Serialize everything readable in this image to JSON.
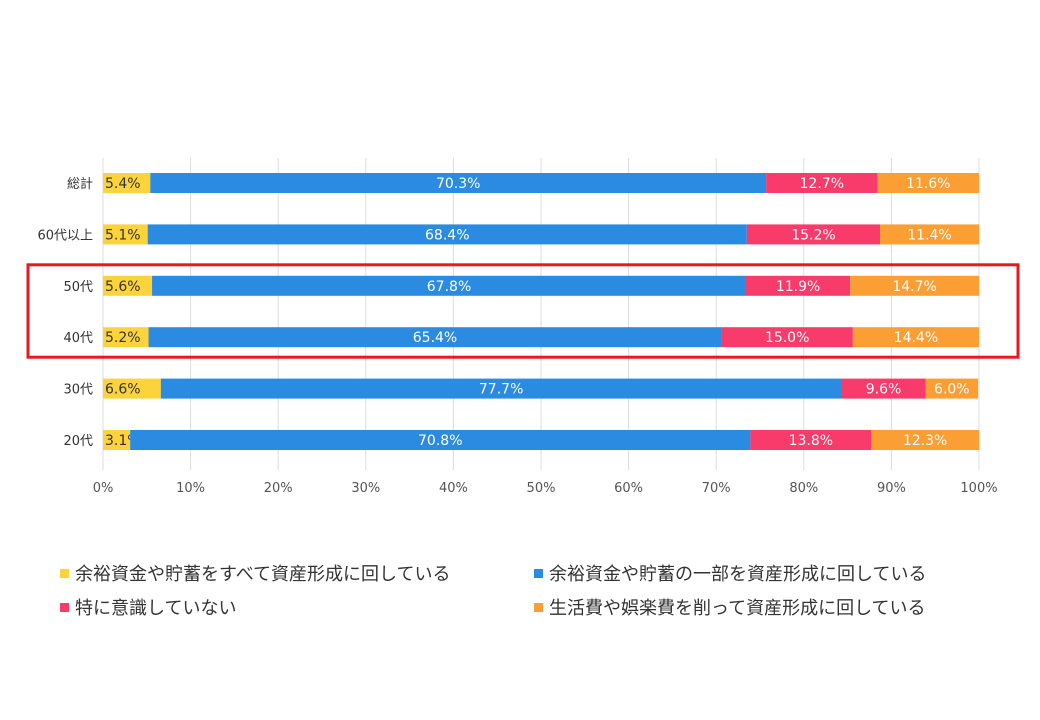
{
  "chart_data": {
    "type": "bar",
    "orientation": "horizontal",
    "stacked": true,
    "categories": [
      "総計",
      "60代以上",
      "50代",
      "40代",
      "30代",
      "20代"
    ],
    "series": [
      {
        "name": "余裕資金や貯蓄をすべて資産形成に回している",
        "color": "#FDD33C",
        "values": [
          5.4,
          5.1,
          5.6,
          5.2,
          6.6,
          3.1
        ]
      },
      {
        "name": "余裕資金や貯蓄の一部を資産形成に回している",
        "color": "#2B8BE0",
        "values": [
          70.3,
          68.4,
          67.8,
          65.4,
          77.7,
          70.8
        ]
      },
      {
        "name": "特に意識していない",
        "color": "#F93B6B",
        "values": [
          12.7,
          15.2,
          11.9,
          15.0,
          9.6,
          13.8
        ]
      },
      {
        "name": "生活費や娯楽費を削って資産形成に回している",
        "color": "#FB9F34",
        "values": [
          11.6,
          11.4,
          14.7,
          14.4,
          6.0,
          12.3
        ]
      }
    ],
    "value_labels": [
      [
        "5.4%",
        "70.3%",
        "12.7%",
        "11.6%"
      ],
      [
        "5.1%",
        "68.4%",
        "15.2%",
        "11.4%"
      ],
      [
        "5.6%",
        "67.8%",
        "11.9%",
        "14.7%"
      ],
      [
        "5.2%",
        "65.4%",
        "15.0%",
        "14.4%"
      ],
      [
        "6.6%",
        "77.7%",
        "9.6%",
        "6.0%"
      ],
      [
        "3.1%",
        "70.8%",
        "13.8%",
        "12.3%"
      ]
    ],
    "xlim": [
      0,
      100
    ],
    "x_ticks": [
      "0%",
      "10%",
      "20%",
      "30%",
      "40%",
      "50%",
      "60%",
      "70%",
      "80%",
      "90%",
      "100%"
    ],
    "grid": true,
    "legend_position": "bottom",
    "highlight": {
      "categories": [
        "50代",
        "40代"
      ],
      "color": "#E8191E"
    }
  }
}
